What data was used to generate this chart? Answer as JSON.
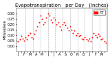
{
  "title": "Evapotranspiration   per Day   (Inches)",
  "ylabel_left": "Milwaukee",
  "background_color": "#ffffff",
  "plot_bg": "#ffffff",
  "grid_color": "#aaaaaa",
  "dot_color": "#ff0000",
  "dot_size": 2,
  "legend_color": "#ff0000",
  "legend_label": "ET",
  "ylim": [
    -0.05,
    0.35
  ],
  "yticks": [
    0.0,
    0.05,
    0.1,
    0.15,
    0.2,
    0.25,
    0.3
  ],
  "x_values": [
    0,
    1,
    2,
    3,
    4,
    5,
    6,
    7,
    8,
    9,
    10,
    11,
    12,
    13,
    14,
    15,
    16,
    17,
    18,
    19,
    20,
    21,
    22,
    23,
    24,
    25,
    26,
    27,
    28,
    29,
    30,
    31,
    32,
    33,
    34,
    35,
    36,
    37,
    38,
    39,
    40,
    41,
    42,
    43,
    44,
    45,
    46,
    47,
    48,
    49,
    50,
    51,
    52,
    53,
    54,
    55,
    56,
    57,
    58,
    59
  ],
  "y_values": [
    0.04,
    0.06,
    0.09,
    0.07,
    0.05,
    0.08,
    0.06,
    0.1,
    0.12,
    0.08,
    0.07,
    0.11,
    0.14,
    0.18,
    0.22,
    0.28,
    0.25,
    0.2,
    0.22,
    0.26,
    0.3,
    0.28,
    0.24,
    0.22,
    0.26,
    0.24,
    0.2,
    0.22,
    0.18,
    0.15,
    0.2,
    0.22,
    0.19,
    0.17,
    0.14,
    0.18,
    0.15,
    0.12,
    0.14,
    0.1,
    0.12,
    0.09,
    0.1,
    0.07,
    0.06,
    0.08,
    0.06,
    0.05,
    0.07,
    0.04,
    0.08,
    0.12,
    0.1,
    0.08,
    0.11,
    0.09,
    0.06,
    0.07,
    0.04,
    0.03
  ],
  "vline_positions": [
    5,
    10,
    15,
    20,
    25,
    30,
    35,
    40,
    45,
    50,
    55
  ],
  "xtick_positions": [
    0,
    2,
    4,
    6,
    8,
    10,
    12,
    14,
    16,
    18,
    20,
    22,
    24,
    26,
    28,
    30,
    32,
    34,
    36,
    38,
    40,
    42,
    44,
    46,
    48,
    50,
    52,
    54,
    56,
    58
  ],
  "xtick_labels": [
    "J",
    "",
    "F",
    "",
    "M",
    "",
    "A",
    "",
    "M",
    "",
    "J",
    "",
    "J",
    "",
    "A",
    "",
    "S",
    "",
    "O",
    "",
    "N",
    "",
    "D",
    "",
    "J",
    "",
    "F",
    "",
    "M",
    ""
  ],
  "title_fontsize": 5,
  "axis_fontsize": 4,
  "tick_fontsize": 3.5
}
